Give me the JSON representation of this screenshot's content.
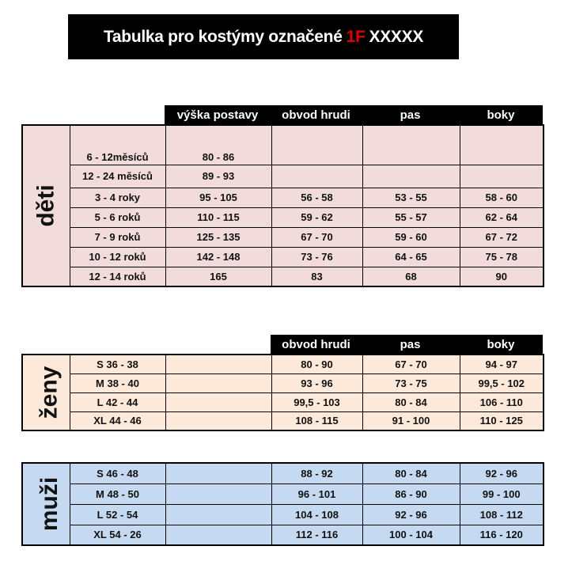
{
  "title": {
    "prefix": "Tabulka pro kostýmy označené",
    "highlight": "1F",
    "suffix": "XXXXX",
    "highlight_color": "#e00000"
  },
  "colors": {
    "deti": "#f2dcdb",
    "zeny": "#fde9d9",
    "muzi": "#c5d9f1"
  },
  "deti": {
    "category": "děti",
    "headers": [
      "výška postavy",
      "obvod hrudi",
      "pas",
      "boky"
    ],
    "rows": [
      [
        "6 - 12měsíců",
        "80 - 86",
        "",
        "",
        ""
      ],
      [
        "12 - 24 měsíců",
        "89 - 93",
        "",
        "",
        ""
      ],
      [
        "3 - 4 roky",
        "95 - 105",
        "56 - 58",
        "53 - 55",
        "58 - 60"
      ],
      [
        "5 - 6 roků",
        "110 - 115",
        "59 - 62",
        "55 - 57",
        "62 - 64"
      ],
      [
        "7 - 9 roků",
        "125 - 135",
        "67 - 70",
        "59 - 60",
        "67 - 72"
      ],
      [
        "10 - 12 roků",
        "142 - 148",
        "73 - 76",
        "64 - 65",
        "75 - 78"
      ],
      [
        "12 - 14 roků",
        "165",
        "83",
        "68",
        "90"
      ]
    ]
  },
  "zeny": {
    "category": "ženy",
    "headers": [
      "obvod hrudi",
      "pas",
      "boky"
    ],
    "rows": [
      [
        "S 36 - 38",
        "",
        "80 - 90",
        "67 - 70",
        "94 - 97"
      ],
      [
        "M 38 - 40",
        "",
        "93 - 96",
        "73 - 75",
        "99,5 - 102"
      ],
      [
        "L 42 - 44",
        "",
        "99,5 - 103",
        "80 - 84",
        "106 - 110"
      ],
      [
        "XL 44 - 46",
        "",
        "108 - 115",
        "91 - 100",
        "110 - 125"
      ]
    ]
  },
  "muzi": {
    "category": "muži",
    "rows": [
      [
        "S 46 - 48",
        "",
        "88 - 92",
        "80 - 84",
        "92 - 96"
      ],
      [
        "M 48 - 50",
        "",
        "96 - 101",
        "86 - 90",
        "99 - 100"
      ],
      [
        "L 52 - 54",
        "",
        "104 - 108",
        "92 - 96",
        "108 - 112"
      ],
      [
        "XL 54 - 26",
        "",
        "112 - 116",
        "100 - 104",
        "116 - 120"
      ]
    ]
  }
}
